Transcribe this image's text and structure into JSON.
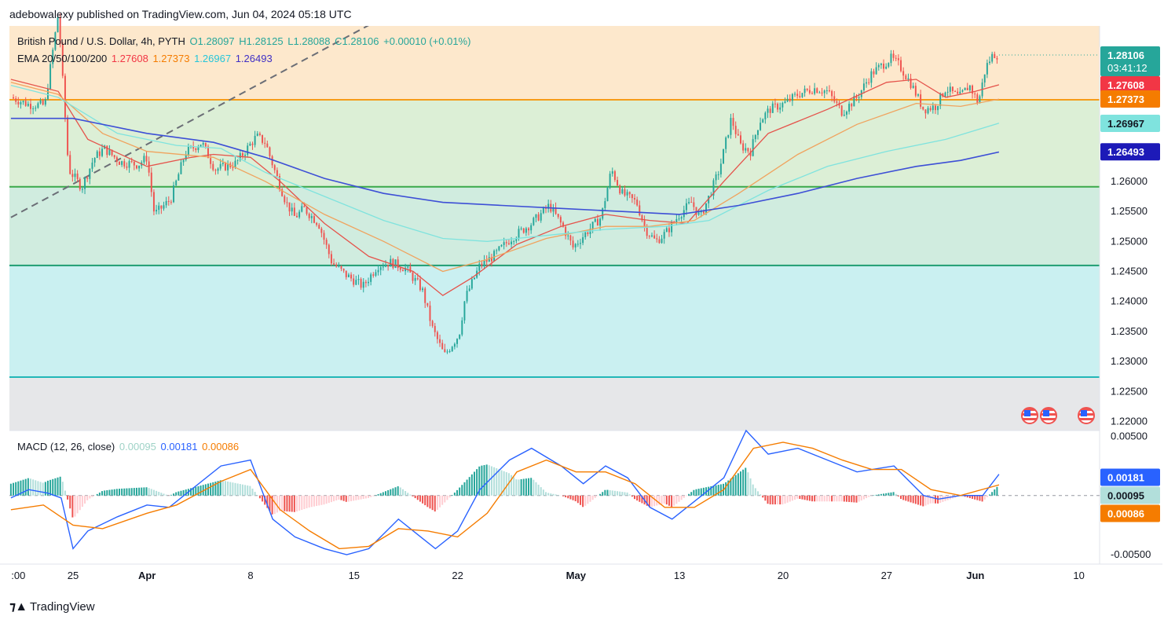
{
  "publisher_line": "adebowalexy published on TradingView.com, Jun 04, 2024 05:18 UTC",
  "legend": {
    "symbol": "British Pound / U.S. Dollar, 4h, PYTH",
    "open": "O1.28097",
    "high": "H1.28125",
    "low": "L1.28088",
    "close": "C1.28106",
    "change": "+0.00010 (+0.01%)",
    "ema_label": "EMA 20/50/100/200",
    "ema20": "1.27608",
    "ema50": "1.27373",
    "ema100": "1.26967",
    "ema200": "1.26493"
  },
  "macd_legend": {
    "label": "MACD (12, 26, close)",
    "hist": "0.00095",
    "macd": "0.00181",
    "signal": "0.00086"
  },
  "price_labels": {
    "last": "1.28106",
    "countdown": "03:41:12",
    "ema20": "1.27608",
    "ema50": "1.27373",
    "ema100": "1.26967",
    "ema200": "1.26493"
  },
  "macd_labels": {
    "macd": "0.00181",
    "hist": "0.00095",
    "signal": "0.00086"
  },
  "colors": {
    "up": "#26a69a",
    "down": "#ef5350",
    "ema20": "#e5534b",
    "ema50": "#f0a35e",
    "ema100": "#7fe3de",
    "ema200": "#3d4fd6",
    "macd": "#2962ff",
    "signal": "#f57c00",
    "zone_top": "#fde8cc",
    "zone_mid": "#dcefd6",
    "zone_low": "#d0ecdf",
    "zone_bottom": "#caf0f1",
    "zone_gray": "#e6e7e9",
    "line_orange": "#f59c1a",
    "line_green": "#3aa84a",
    "line_green2": "#1f9d72",
    "line_teal": "#22b7b7"
  },
  "brand": "TradingView",
  "brand_icon": "tradingview-logo-icon",
  "chart_data": {
    "type": "candlestick",
    "title": "British Pound / U.S. Dollar, 4h, PYTH",
    "y_ticks": [
      "1.26000",
      "1.25500",
      "1.25000",
      "1.24500",
      "1.24000",
      "1.23500",
      "1.23000",
      "1.22500",
      "1.22000"
    ],
    "ylim": [
      1.2185,
      1.2859
    ],
    "x_ticks": [
      ":00",
      "25",
      "Apr",
      "8",
      "15",
      "22",
      "May",
      "13",
      "20",
      "27",
      "Jun",
      "10"
    ],
    "x_tick_days": [
      -0.7,
      3,
      8,
      15,
      22,
      29,
      37,
      44,
      51,
      58,
      64,
      71
    ],
    "xlim_days": [
      -1.3,
      72.4
    ],
    "macd_ticks": [
      "0.00500",
      "-0.00500"
    ],
    "macd_ylim": [
      -0.0058,
      0.0055
    ],
    "horizontal_levels": [
      {
        "name": "resistance-orange",
        "value": 1.2736,
        "color": "#f59c1a"
      },
      {
        "name": "level-green",
        "value": 1.2591,
        "color": "#3aa84a"
      },
      {
        "name": "level-green-2",
        "value": 1.246,
        "color": "#1f9d72"
      },
      {
        "name": "level-teal",
        "value": 1.2274,
        "color": "#22b7b7"
      }
    ],
    "zones": [
      {
        "from": 1.2859,
        "to": 1.2736,
        "color": "#fde8cc"
      },
      {
        "from": 1.2736,
        "to": 1.2591,
        "color": "#dcefd6"
      },
      {
        "from": 1.2591,
        "to": 1.246,
        "color": "#d0ecdf"
      },
      {
        "from": 1.246,
        "to": 1.2274,
        "color": "#caf0f1"
      },
      {
        "from": 1.2274,
        "to": 1.2185,
        "color": "#e6e7e9"
      }
    ],
    "trendline": {
      "from_day": -1.2,
      "from_value": 1.254,
      "to_day": 26,
      "to_value": 1.29
    },
    "price_anchors": [
      [
        -1.2,
        1.274
      ],
      [
        0,
        1.2728
      ],
      [
        1.1,
        1.2727
      ],
      [
        2.0,
        1.288
      ],
      [
        2.7,
        1.262
      ],
      [
        3.6,
        1.259
      ],
      [
        4.4,
        1.2638
      ],
      [
        5.1,
        1.2655
      ],
      [
        6.2,
        1.2632
      ],
      [
        7.4,
        1.2628
      ],
      [
        8.0,
        1.264
      ],
      [
        8.5,
        1.2545
      ],
      [
        9.6,
        1.257
      ],
      [
        10.6,
        1.2648
      ],
      [
        11.7,
        1.2665
      ],
      [
        12.6,
        1.262
      ],
      [
        14.0,
        1.263
      ],
      [
        15.4,
        1.2675
      ],
      [
        16.0,
        1.2665
      ],
      [
        16.6,
        1.262
      ],
      [
        17.4,
        1.2565
      ],
      [
        18.0,
        1.254
      ],
      [
        18.6,
        1.2555
      ],
      [
        19.6,
        1.253
      ],
      [
        20.5,
        1.2465
      ],
      [
        21.4,
        1.2445
      ],
      [
        22.6,
        1.2425
      ],
      [
        23.6,
        1.246
      ],
      [
        24.5,
        1.2465
      ],
      [
        25.5,
        1.2455
      ],
      [
        26.6,
        1.242
      ],
      [
        27.3,
        1.2355
      ],
      [
        28.1,
        1.231
      ],
      [
        29.1,
        1.2345
      ],
      [
        29.5,
        1.2405
      ],
      [
        30.5,
        1.246
      ],
      [
        31.4,
        1.2475
      ],
      [
        32.6,
        1.2505
      ],
      [
        34.0,
        1.253
      ],
      [
        35.2,
        1.256
      ],
      [
        36.1,
        1.2525
      ],
      [
        36.8,
        1.249
      ],
      [
        37.7,
        1.2515
      ],
      [
        38.7,
        1.254
      ],
      [
        39.4,
        1.262
      ],
      [
        40.1,
        1.258
      ],
      [
        41.1,
        1.2565
      ],
      [
        41.7,
        1.252
      ],
      [
        42.4,
        1.25
      ],
      [
        43.1,
        1.2515
      ],
      [
        44.0,
        1.2545
      ],
      [
        44.8,
        1.2565
      ],
      [
        45.4,
        1.254
      ],
      [
        46.0,
        1.2575
      ],
      [
        46.7,
        1.262
      ],
      [
        47.5,
        1.2705
      ],
      [
        48.1,
        1.266
      ],
      [
        48.8,
        1.265
      ],
      [
        49.4,
        1.27
      ],
      [
        50.1,
        1.272
      ],
      [
        51.1,
        1.273
      ],
      [
        52.0,
        1.2745
      ],
      [
        53.1,
        1.2755
      ],
      [
        54.0,
        1.275
      ],
      [
        55.0,
        1.2715
      ],
      [
        56.0,
        1.274
      ],
      [
        57.0,
        1.278
      ],
      [
        58.3,
        1.2805
      ],
      [
        58.8,
        1.2795
      ],
      [
        59.6,
        1.2765
      ],
      [
        60.5,
        1.272
      ],
      [
        61.3,
        1.2725
      ],
      [
        62.0,
        1.2755
      ],
      [
        62.9,
        1.274
      ],
      [
        63.6,
        1.276
      ],
      [
        64.2,
        1.273
      ],
      [
        64.7,
        1.279
      ],
      [
        65.2,
        1.2812
      ],
      [
        65.6,
        1.281
      ]
    ],
    "ema_anchors": {
      "ema20": [
        [
          -1.2,
          1.277
        ],
        [
          2,
          1.275
        ],
        [
          4,
          1.267
        ],
        [
          8,
          1.2625
        ],
        [
          11,
          1.264
        ],
        [
          12.5,
          1.2645
        ],
        [
          15,
          1.264
        ],
        [
          17,
          1.26
        ],
        [
          20,
          1.253
        ],
        [
          23,
          1.2475
        ],
        [
          26,
          1.245
        ],
        [
          28,
          1.241
        ],
        [
          30,
          1.244
        ],
        [
          33,
          1.2495
        ],
        [
          36,
          1.2525
        ],
        [
          39,
          1.2545
        ],
        [
          42,
          1.2535
        ],
        [
          44.5,
          1.253
        ],
        [
          47,
          1.26
        ],
        [
          50,
          1.268
        ],
        [
          54,
          1.272
        ],
        [
          58,
          1.2765
        ],
        [
          60,
          1.277
        ],
        [
          62,
          1.274
        ],
        [
          64,
          1.275
        ],
        [
          65.6,
          1.2761
        ]
      ],
      "ema50": [
        [
          -1.2,
          1.2765
        ],
        [
          2,
          1.2745
        ],
        [
          5,
          1.268
        ],
        [
          8,
          1.265
        ],
        [
          12.5,
          1.264
        ],
        [
          16,
          1.26
        ],
        [
          20,
          1.2545
        ],
        [
          24,
          1.25
        ],
        [
          28,
          1.245
        ],
        [
          31,
          1.247
        ],
        [
          35,
          1.2505
        ],
        [
          39,
          1.2525
        ],
        [
          42,
          1.2525
        ],
        [
          45,
          1.2535
        ],
        [
          48,
          1.258
        ],
        [
          52,
          1.2645
        ],
        [
          56,
          1.2695
        ],
        [
          60,
          1.273
        ],
        [
          63,
          1.2725
        ],
        [
          65.6,
          1.2737
        ]
      ],
      "ema100": [
        [
          -1.2,
          1.276
        ],
        [
          2,
          1.274
        ],
        [
          6,
          1.268
        ],
        [
          10,
          1.266
        ],
        [
          13,
          1.2655
        ],
        [
          16,
          1.2615
        ],
        [
          20,
          1.2575
        ],
        [
          24,
          1.2535
        ],
        [
          28,
          1.2505
        ],
        [
          31,
          1.25
        ],
        [
          35,
          1.251
        ],
        [
          39,
          1.252
        ],
        [
          43,
          1.2525
        ],
        [
          46,
          1.2535
        ],
        [
          50,
          1.2585
        ],
        [
          54,
          1.2625
        ],
        [
          58,
          1.265
        ],
        [
          62,
          1.267
        ],
        [
          65.6,
          1.2697
        ]
      ],
      "ema200": [
        [
          -1.2,
          1.2705
        ],
        [
          3,
          1.2705
        ],
        [
          8,
          1.268
        ],
        [
          12.5,
          1.2665
        ],
        [
          16,
          1.264
        ],
        [
          20,
          1.2605
        ],
        [
          24,
          1.258
        ],
        [
          28,
          1.2565
        ],
        [
          32,
          1.256
        ],
        [
          36,
          1.2555
        ],
        [
          40,
          1.255
        ],
        [
          44,
          1.2545
        ],
        [
          48,
          1.256
        ],
        [
          52,
          1.258
        ],
        [
          56,
          1.2605
        ],
        [
          60,
          1.2625
        ],
        [
          63,
          1.2635
        ],
        [
          65.6,
          1.2649
        ]
      ]
    },
    "macd_line": [
      [
        -1.2,
        -0.0002
      ],
      [
        0,
        0.0005
      ],
      [
        1.3,
        0.0002
      ],
      [
        2.2,
        -0.0002
      ],
      [
        3,
        -0.0045
      ],
      [
        4,
        -0.003
      ],
      [
        6,
        -0.0018
      ],
      [
        8,
        -0.0008
      ],
      [
        9.5,
        -0.001
      ],
      [
        11,
        0.0005
      ],
      [
        13,
        0.0025
      ],
      [
        15,
        0.003
      ],
      [
        16.5,
        -0.002
      ],
      [
        18,
        -0.0035
      ],
      [
        20,
        -0.0045
      ],
      [
        21.5,
        -0.005
      ],
      [
        23,
        -0.0045
      ],
      [
        25,
        -0.002
      ],
      [
        26.5,
        -0.0035
      ],
      [
        27.5,
        -0.0045
      ],
      [
        29,
        -0.003
      ],
      [
        30.5,
        0.0005
      ],
      [
        32.5,
        0.003
      ],
      [
        34,
        0.004
      ],
      [
        36,
        0.0025
      ],
      [
        37.5,
        0.001
      ],
      [
        39,
        0.0025
      ],
      [
        40.5,
        0.0015
      ],
      [
        42,
        -0.001
      ],
      [
        43.5,
        -0.002
      ],
      [
        45,
        -0.0005
      ],
      [
        47,
        0.0015
      ],
      [
        48.5,
        0.0055
      ],
      [
        50,
        0.0035
      ],
      [
        52,
        0.004
      ],
      [
        54,
        0.003
      ],
      [
        56,
        0.002
      ],
      [
        58.5,
        0.0025
      ],
      [
        60.5,
        0.0
      ],
      [
        61.5,
        -0.0003
      ],
      [
        63,
        0.0
      ],
      [
        64.5,
        0.0
      ],
      [
        65.6,
        0.0018
      ]
    ],
    "signal_line": [
      [
        -1.2,
        -0.0012
      ],
      [
        1,
        -0.0008
      ],
      [
        3,
        -0.0025
      ],
      [
        5,
        -0.0028
      ],
      [
        8,
        -0.0015
      ],
      [
        10,
        -0.0008
      ],
      [
        13,
        0.0012
      ],
      [
        15,
        0.0022
      ],
      [
        17,
        -0.0012
      ],
      [
        19,
        -0.003
      ],
      [
        21,
        -0.0045
      ],
      [
        23,
        -0.0043
      ],
      [
        25,
        -0.0028
      ],
      [
        27,
        -0.003
      ],
      [
        29,
        -0.0035
      ],
      [
        31,
        -0.0015
      ],
      [
        33,
        0.002
      ],
      [
        35,
        0.003
      ],
      [
        37,
        0.002
      ],
      [
        39,
        0.002
      ],
      [
        41,
        0.001
      ],
      [
        43,
        -0.001
      ],
      [
        45,
        -0.001
      ],
      [
        47,
        0.0005
      ],
      [
        49,
        0.004
      ],
      [
        51,
        0.0045
      ],
      [
        53,
        0.004
      ],
      [
        55,
        0.003
      ],
      [
        57,
        0.0022
      ],
      [
        59,
        0.0022
      ],
      [
        61,
        0.0005
      ],
      [
        63,
        0.0
      ],
      [
        65.6,
        0.0009
      ]
    ]
  }
}
